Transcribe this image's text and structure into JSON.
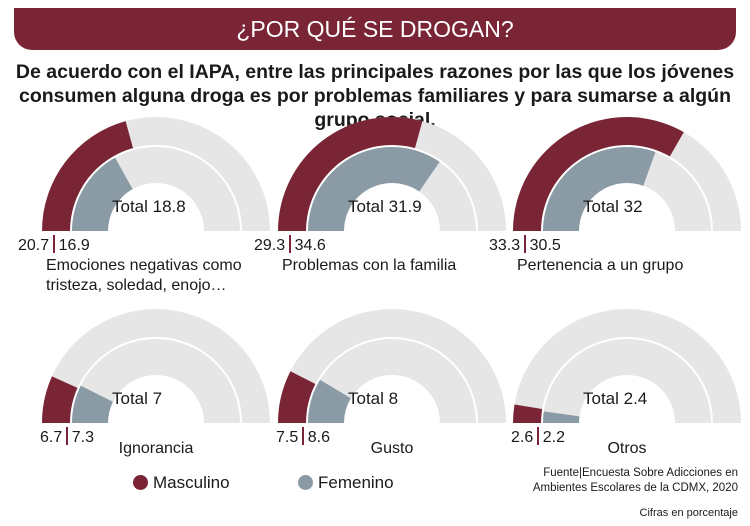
{
  "title": "¿POR QUÉ SE DROGAN?",
  "subtitle": "De acuerdo con el IAPA, entre las principales razones por las que los jóvenes consumen alguna droga es por problemas familiares y para sumarse a algún grupo social.",
  "colors": {
    "masculino": "#7a2535",
    "femenino": "#8b9ba5",
    "track": "#e6e6e6"
  },
  "chart_data": {
    "type": "radial-bar",
    "scale_max": 50,
    "series_names": [
      "Masculino",
      "Femenino"
    ],
    "items": [
      {
        "category": "Emociones negativas como tristeza, soledad, enojo…",
        "masculino": 20.7,
        "femenino": 16.9,
        "total_label": "Total 18.8",
        "m_label": "20.7",
        "f_label": "16.9"
      },
      {
        "category": "Problemas con la familia",
        "masculino": 29.3,
        "femenino": 34.6,
        "total_label": "Total 31.9",
        "m_label": "29.3",
        "f_label": "34.6"
      },
      {
        "category": "Pertenencia a un grupo",
        "masculino": 33.3,
        "femenino": 30.5,
        "total_label": "Total 32",
        "m_label": "33.3",
        "f_label": "30.5"
      },
      {
        "category": "Ignorancia",
        "masculino": 6.7,
        "femenino": 7.3,
        "total_label": "Total 7",
        "m_label": "6.7",
        "f_label": "7.3"
      },
      {
        "category": "Gusto",
        "masculino": 7.5,
        "femenino": 8.6,
        "total_label": "Total 8",
        "m_label": "7.5",
        "f_label": "8.6"
      },
      {
        "category": "Otros",
        "masculino": 2.6,
        "femenino": 2.2,
        "total_label": "Total 2.4",
        "m_label": "2.6",
        "f_label": "2.2"
      }
    ]
  },
  "legend": {
    "masculino": "Masculino",
    "femenino": "Femenino"
  },
  "source": {
    "line1": "Fuente|Encuesta Sobre Adicciones en",
    "line2": "Ambientes Escolares de la CDMX, 2020"
  },
  "note": "Cifras en porcentaje"
}
